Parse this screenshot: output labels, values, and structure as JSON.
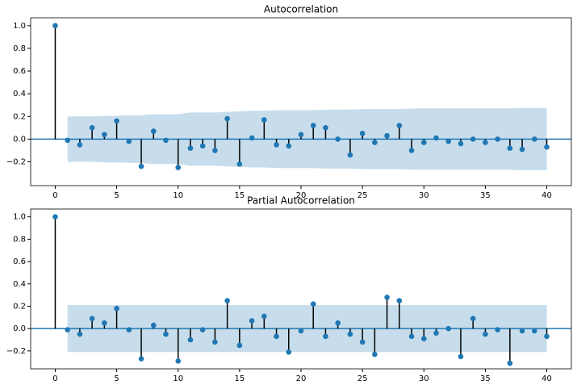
{
  "chart_data": [
    {
      "type": "stem",
      "title": "Autocorrelation",
      "x": [
        0,
        1,
        2,
        3,
        4,
        5,
        6,
        7,
        8,
        9,
        10,
        11,
        12,
        13,
        14,
        15,
        16,
        17,
        18,
        19,
        20,
        21,
        22,
        23,
        24,
        25,
        26,
        27,
        28,
        29,
        30,
        31,
        32,
        33,
        34,
        35,
        36,
        37,
        38,
        39,
        40
      ],
      "values": [
        1.0,
        -0.01,
        -0.05,
        0.1,
        0.04,
        0.16,
        -0.02,
        -0.24,
        0.07,
        -0.01,
        -0.25,
        -0.08,
        -0.06,
        -0.1,
        0.18,
        -0.22,
        0.01,
        0.17,
        -0.05,
        -0.06,
        0.04,
        0.12,
        0.1,
        0.0,
        -0.14,
        0.05,
        -0.03,
        0.03,
        0.12,
        -0.1,
        -0.03,
        0.01,
        -0.02,
        -0.04,
        0.0,
        -0.03,
        0.0,
        -0.08,
        -0.09,
        0.0,
        -0.07
      ],
      "confint": [
        0.2,
        0.2,
        0.2,
        0.205,
        0.205,
        0.21,
        0.21,
        0.22,
        0.22,
        0.22,
        0.235,
        0.235,
        0.235,
        0.24,
        0.245,
        0.25,
        0.25,
        0.255,
        0.255,
        0.255,
        0.255,
        0.26,
        0.26,
        0.26,
        0.265,
        0.265,
        0.265,
        0.265,
        0.27,
        0.27,
        0.27,
        0.27,
        0.27,
        0.27,
        0.27,
        0.27,
        0.27,
        0.275,
        0.275,
        0.275
      ],
      "color": "#1f77b4",
      "band_color": "#1f77b4",
      "xlim": [
        -2,
        42
      ],
      "xticks": [
        0,
        5,
        10,
        15,
        20,
        25,
        30,
        35,
        40
      ],
      "ylim": [
        -0.41,
        1.07
      ],
      "yticks": [
        {
          "value": -0.2,
          "label": "−0.2"
        },
        {
          "value": 0,
          "label": "0.0"
        },
        {
          "value": 0.2,
          "label": "0.2"
        },
        {
          "value": 0.4,
          "label": "0.4"
        },
        {
          "value": 0.6,
          "label": "0.6"
        },
        {
          "value": 0.8,
          "label": "0.8"
        },
        {
          "value": 1,
          "label": "1.0"
        }
      ]
    },
    {
      "type": "stem",
      "title": "Partial Autocorrelation",
      "x": [
        0,
        1,
        2,
        3,
        4,
        5,
        6,
        7,
        8,
        9,
        10,
        11,
        12,
        13,
        14,
        15,
        16,
        17,
        18,
        19,
        20,
        21,
        22,
        23,
        24,
        25,
        26,
        27,
        28,
        29,
        30,
        31,
        32,
        33,
        34,
        35,
        36,
        37,
        38,
        39,
        40
      ],
      "values": [
        1.0,
        -0.01,
        -0.05,
        0.09,
        0.05,
        0.18,
        -0.01,
        -0.27,
        0.03,
        -0.05,
        -0.29,
        -0.1,
        -0.01,
        -0.12,
        0.25,
        -0.15,
        0.07,
        0.11,
        -0.07,
        -0.21,
        -0.02,
        0.22,
        -0.07,
        0.05,
        -0.05,
        -0.12,
        -0.23,
        0.28,
        0.25,
        -0.07,
        -0.09,
        -0.04,
        0.0,
        -0.25,
        0.09,
        -0.05,
        -0.01,
        -0.31,
        -0.02,
        -0.02,
        -0.07
      ],
      "confint": 0.21,
      "color": "#1f77b4",
      "band_color": "#1f77b4",
      "xlim": [
        -2,
        42
      ],
      "xticks": [
        0,
        5,
        10,
        15,
        20,
        25,
        30,
        35,
        40
      ],
      "ylim": [
        -0.36,
        1.07
      ],
      "yticks": [
        {
          "value": -0.2,
          "label": "−0.2"
        },
        {
          "value": 0,
          "label": "0.0"
        },
        {
          "value": 0.2,
          "label": "0.2"
        },
        {
          "value": 0.4,
          "label": "0.4"
        },
        {
          "value": 0.6,
          "label": "0.6"
        },
        {
          "value": 0.8,
          "label": "0.8"
        },
        {
          "value": 1,
          "label": "1.0"
        }
      ]
    }
  ]
}
